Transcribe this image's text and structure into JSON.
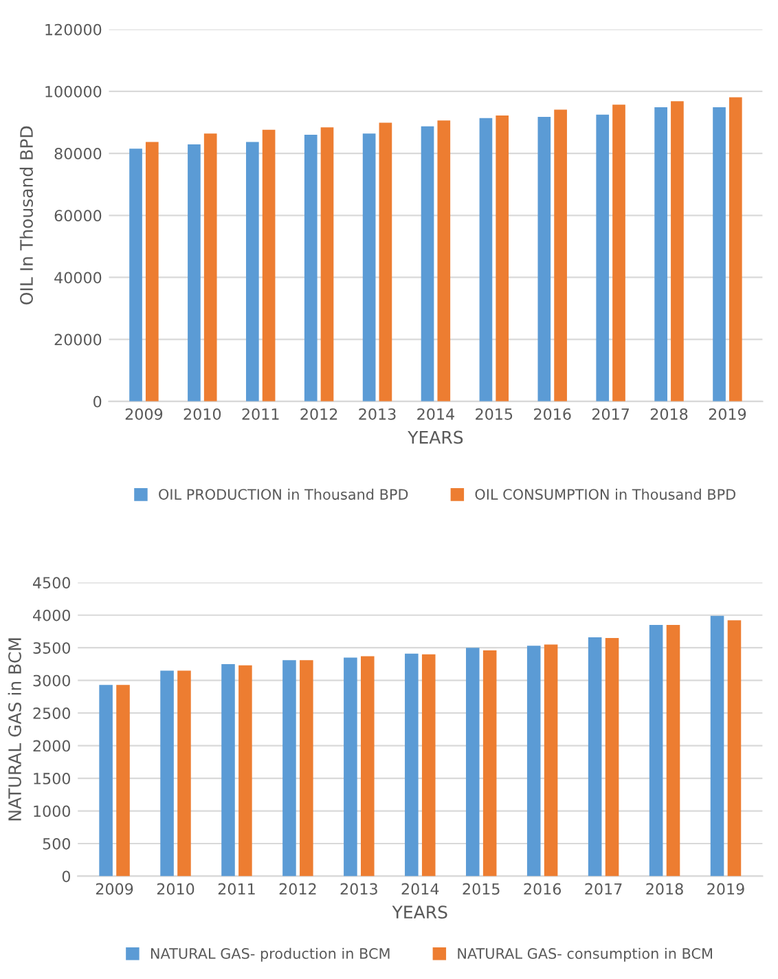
{
  "chart_data": [
    {
      "type": "bar",
      "xlabel": "YEARS",
      "ylabel": "OIL In Thousand BPD",
      "categories": [
        "2009",
        "2010",
        "2011",
        "2012",
        "2013",
        "2014",
        "2015",
        "2016",
        "2017",
        "2018",
        "2019"
      ],
      "series": [
        {
          "name": "OIL PRODUCTION in Thousand BPD",
          "color": "#5b9bd5",
          "values": [
            81500,
            82900,
            83700,
            86000,
            86400,
            88700,
            91400,
            91800,
            92500,
            94900,
            94900
          ]
        },
        {
          "name": "OIL CONSUMPTION in Thousand BPD",
          "color": "#ed7d31",
          "values": [
            83700,
            86400,
            87600,
            88400,
            89900,
            90600,
            92200,
            94100,
            95700,
            96800,
            98100
          ]
        }
      ],
      "ylim": [
        0,
        120000
      ],
      "yticks": [
        0,
        20000,
        40000,
        60000,
        80000,
        100000,
        120000
      ],
      "grid": "y",
      "legend": "bottom"
    },
    {
      "type": "bar",
      "xlabel": "YEARS",
      "ylabel": "NATURAL GAS in BCM",
      "categories": [
        "2009",
        "2010",
        "2011",
        "2012",
        "2013",
        "2014",
        "2015",
        "2016",
        "2017",
        "2018",
        "2019"
      ],
      "series": [
        {
          "name": "NATURAL GAS- production in BCM",
          "color": "#5b9bd5",
          "values": [
            2930,
            3150,
            3250,
            3310,
            3350,
            3410,
            3500,
            3530,
            3660,
            3850,
            3990
          ]
        },
        {
          "name": "NATURAL GAS- consumption in BCM",
          "color": "#ed7d31",
          "values": [
            2930,
            3150,
            3230,
            3310,
            3370,
            3400,
            3460,
            3550,
            3650,
            3850,
            3920
          ]
        }
      ],
      "ylim": [
        0,
        4500
      ],
      "yticks": [
        0,
        500,
        1000,
        1500,
        2000,
        2500,
        3000,
        3500,
        4000,
        4500
      ],
      "grid": "y",
      "legend": "bottom"
    }
  ]
}
